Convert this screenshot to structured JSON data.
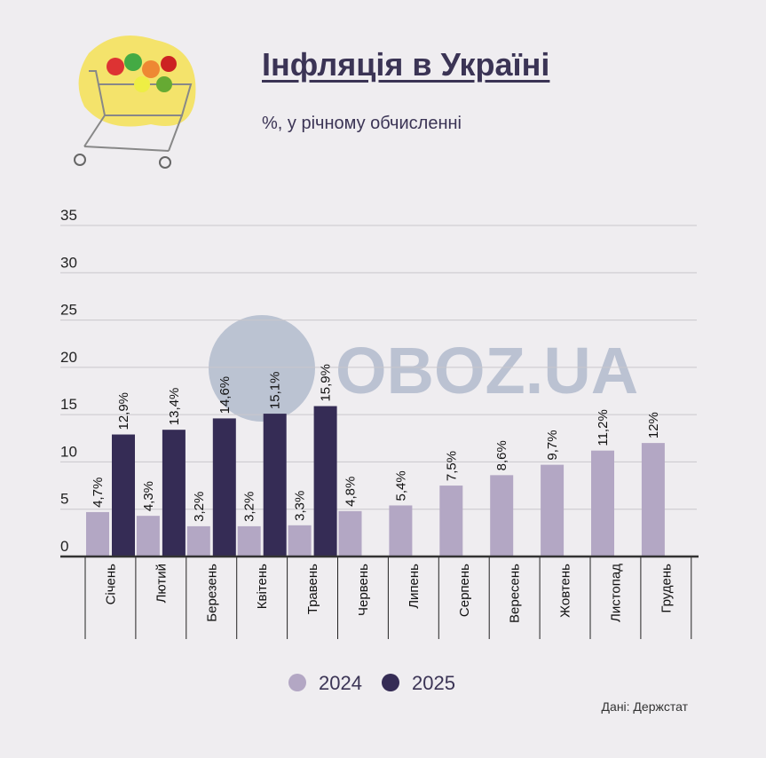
{
  "title": "Інфляція в Україні",
  "subtitle": "%, у річному обчисленні",
  "source": "Дані: Держстат",
  "watermark": "OBOZ.UA",
  "chart_data": {
    "type": "bar",
    "title": "Інфляція в Україні",
    "subtitle": "%, у річному обчисленні",
    "categories": [
      "Січень",
      "Лютий",
      "Березень",
      "Квітень",
      "Травень",
      "Червень",
      "Липень",
      "Серпень",
      "Вересень",
      "Жовтень",
      "Листопад",
      "Грудень"
    ],
    "series": [
      {
        "name": "2024",
        "color": "#b3a7c4",
        "values": [
          4.7,
          4.3,
          3.2,
          3.2,
          3.3,
          4.8,
          5.4,
          7.5,
          8.6,
          9.7,
          11.2,
          12
        ],
        "labels": [
          "4,7%",
          "4,3%",
          "3,2%",
          "3,2%",
          "3,3%",
          "4,8%",
          "5,4%",
          "7,5%",
          "8,6%",
          "9,7%",
          "11,2%",
          "12%"
        ]
      },
      {
        "name": "2025",
        "color": "#352c55",
        "values": [
          12.9,
          13.4,
          14.6,
          15.1,
          15.9,
          null,
          null,
          null,
          null,
          null,
          null,
          null
        ],
        "labels": [
          "12,9%",
          "13,4%",
          "14,6%",
          "15,1%",
          "15,9%"
        ]
      }
    ],
    "yticks": [
      0,
      5,
      10,
      15,
      20,
      25,
      30,
      35
    ],
    "ylim": [
      0,
      35
    ],
    "grid": true,
    "legend": "bottom-center"
  }
}
